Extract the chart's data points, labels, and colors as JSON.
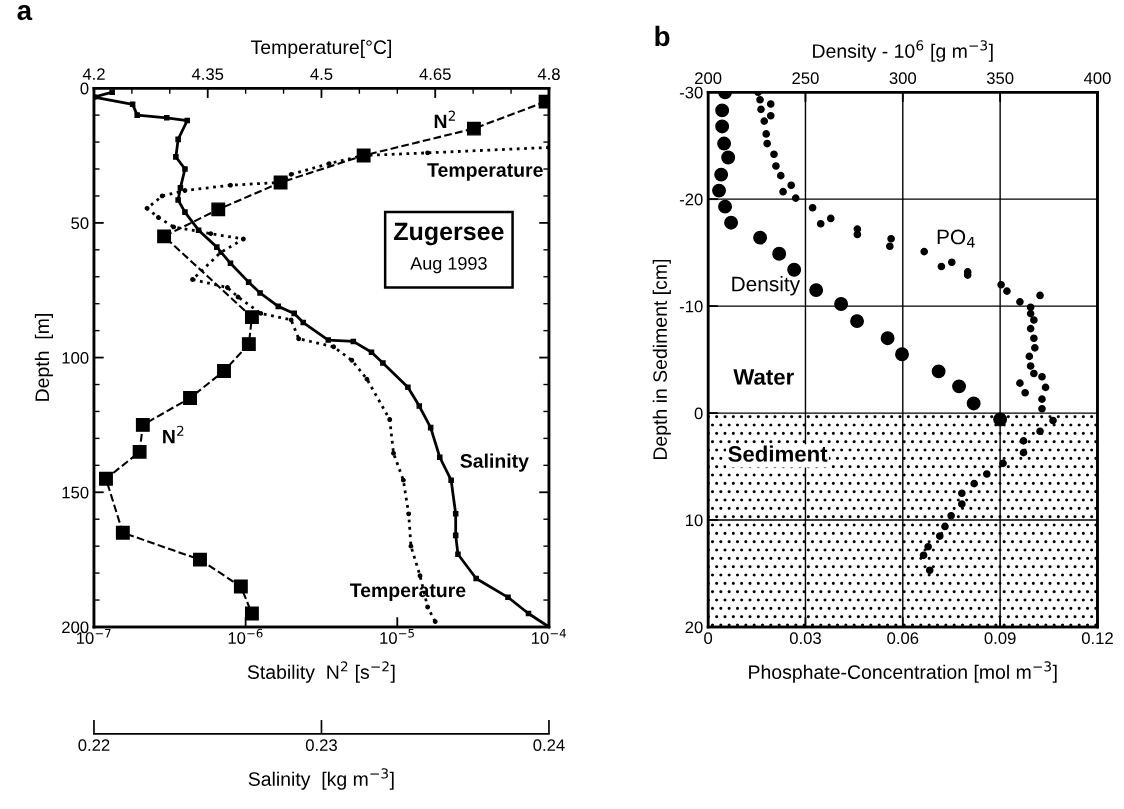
{
  "chart_data": [
    {
      "type": "line",
      "title": "a",
      "xlabel": "Stability  N$^{2}$ [s$^{−2}$]",
      "ylabel": "Depth  [m]",
      "x2label": "Temperature[°C]",
      "log": "x",
      "xlim": [
        1e-07,
        0.0001
      ],
      "xticks": [
        {
          "value": 1e-07,
          "label": "10$^{−7}$"
        },
        {
          "value": 1e-06,
          "label": "10$^{−6}$"
        },
        {
          "value": 1e-05,
          "label": "10$^{−5}$"
        },
        {
          "value": 0.0001,
          "label": "10$^{−4}$"
        }
      ],
      "x2lim": [
        4.2,
        4.8
      ],
      "x2ticks": [
        4.2,
        {
          "value": 4.25,
          "label": null
        },
        {
          "value": 4.3,
          "label": null
        },
        4.35,
        {
          "value": 4.4,
          "label": null
        },
        {
          "value": 4.45,
          "label": null
        },
        4.5,
        {
          "value": 4.55,
          "label": null
        },
        {
          "value": 4.6,
          "label": null
        },
        4.65,
        {
          "value": 4.7,
          "label": null
        },
        {
          "value": 4.75,
          "label": null
        },
        4.8
      ],
      "ylim": [
        200,
        0
      ],
      "yticks": [
        0,
        {
          "value": 10,
          "label": null
        },
        {
          "value": 20,
          "label": null
        },
        {
          "value": 30,
          "label": null
        },
        {
          "value": 40,
          "label": null
        },
        50,
        {
          "value": 60,
          "label": null
        },
        {
          "value": 70,
          "label": null
        },
        {
          "value": 80,
          "label": null
        },
        {
          "value": 90,
          "label": null
        },
        100,
        {
          "value": 110,
          "label": null
        },
        {
          "value": 120,
          "label": null
        },
        {
          "value": 130,
          "label": null
        },
        {
          "value": 140,
          "label": null
        },
        150,
        {
          "value": 160,
          "label": null
        },
        {
          "value": 170,
          "label": null
        },
        {
          "value": 180,
          "label": null
        },
        {
          "value": 190,
          "label": null
        },
        200
      ],
      "series": [
        {
          "color": "#000000",
          "marker": "square",
          "line_style": "dashed",
          "x": [
            9.5e-05,
            3.2e-05,
            6e-06,
            1.7e-06,
            6.6e-07,
            2.9e-07,
            1.1e-06,
            1.05e-06,
            7.2e-07,
            4.3e-07,
            2.1e-07,
            2e-07,
            1.2e-07,
            1.55e-07,
            5e-07,
            9.3e-07,
            1.1e-06
          ],
          "values": [
            5,
            15,
            25,
            35,
            45,
            55,
            85,
            95,
            105,
            115,
            125,
            135,
            145,
            165,
            175,
            185,
            195
          ]
        },
        {
          "color": "#000000",
          "axis": "x2",
          "marker": "circle",
          "line_style": "dotted",
          "x": [
            4.8,
            4.64,
            4.555,
            4.51,
            4.46,
            4.446,
            4.38,
            4.32,
            4.29,
            4.27,
            4.285,
            4.305,
            4.354,
            4.397,
            4.367,
            4.33,
            4.376,
            4.39,
            4.42,
            4.46,
            4.47,
            4.516,
            4.54,
            4.56,
            4.59,
            4.595,
            4.608,
            4.615,
            4.618,
            4.63,
            4.64,
            4.65
          ],
          "values": [
            22,
            24,
            25,
            28,
            32,
            35,
            36,
            38,
            40,
            44.6,
            48,
            51.5,
            54,
            56,
            61,
            71,
            74,
            77.5,
            83.6,
            86,
            93,
            96,
            101,
            108,
            123,
            135.5,
            145.5,
            158,
            170,
            181,
            192.6,
            198
          ]
        }
      ],
      "annotations": [
        "Zugersee",
        "Aug 1993",
        "N$^{2}$",
        "Temperature",
        "N$^{2}$",
        "Temperature"
      ]
    },
    {
      "type": "line",
      "xlabel": "Salinity  [kg m$^{−3}$]",
      "xlim": [
        0.22,
        0.24
      ],
      "xticks": [
        0.22,
        0.23,
        0.24
      ],
      "ylim": [
        200,
        0
      ],
      "tick_labels": "x",
      "series": [
        {
          "color": "#000000",
          "marker": "square",
          "line_style": "solid",
          "x": [
            0.2208,
            0.22,
            0.2217,
            0.2219,
            0.2232,
            0.2241,
            0.2237,
            0.2236,
            0.224,
            0.2238,
            0.2237,
            0.224,
            0.2246,
            0.2254,
            0.226,
            0.2268,
            0.2273,
            0.2281,
            0.2288,
            0.2292,
            0.2303,
            0.2314,
            0.2322,
            0.2327,
            0.2338,
            0.2343,
            0.2348,
            0.2352,
            0.2357,
            0.2359,
            0.2359,
            0.236,
            0.2368,
            0.2382,
            0.2391,
            0.24
          ],
          "values": [
            1.5,
            3.3,
            6,
            10,
            11,
            12,
            19,
            25.5,
            30,
            37,
            41.5,
            46,
            52.7,
            59,
            65,
            72,
            76,
            81,
            83.6,
            87,
            93.5,
            94,
            98,
            102,
            111,
            118,
            126,
            137,
            145.5,
            158,
            166,
            173,
            182,
            189,
            195,
            200
          ]
        }
      ],
      "annotations": [
        "Salinity"
      ]
    },
    {
      "type": "scatter",
      "title": "b",
      "xlabel": "Phosphate-Concentration [mol m$^{−3}$]",
      "ylabel": "Depth in Sediment [cm]",
      "x2label": "Density - 10$^{6}$ [g m$^{−3}$]",
      "xlim": [
        0,
        0.12
      ],
      "xticks": [
        0,
        0.03,
        0.06,
        0.09,
        0.12
      ],
      "x2lim": [
        200,
        400
      ],
      "x2ticks": [
        200,
        250,
        300,
        350,
        400
      ],
      "ylim": [
        20,
        -30
      ],
      "yticks": [
        -30,
        -20,
        -10,
        0,
        10,
        20
      ],
      "grid": true,
      "bands": [
        {
          "axis": "y",
          "from": 0,
          "to": 20,
          "label": "Sediment",
          "color": "#000000"
        }
      ],
      "series": [
        {
          "color": "#000000",
          "axis": "x2",
          "marker": "circle",
          "x": [
            208.7,
            207.2,
            207.2,
            208.2,
            210.3,
            206.7,
            205.6,
            208.7,
            211.8,
            226.7,
            236.5,
            244.2,
            255.5,
            268.3,
            276.5,
            292.2,
            299.6,
            318.4,
            328.9,
            336.4,
            350
          ],
          "values": [
            -30,
            -28.3,
            -26.8,
            -25.2,
            -23.9,
            -22.3,
            -20.8,
            -19.3,
            -17.8,
            -16.4,
            -14.9,
            -13.4,
            -11.5,
            -10.2,
            -8.6,
            -7.0,
            -5.5,
            -3.9,
            -2.5,
            -0.9,
            0.6
          ]
        },
        {
          "color": "#000000",
          "marker": "circle",
          "x": [
            0.0154,
            0.016,
            0.0193,
            0.0163,
            0.0193,
            0.0173,
            0.0179,
            0.0182,
            0.0203,
            0.0209,
            0.0224,
            0.0256,
            0.0231,
            0.027,
            0.0322,
            0.0378,
            0.0347,
            0.046,
            0.046,
            0.0564,
            0.056,
            0.0666,
            0.0751,
            0.0719,
            0.08,
            0.08,
            0.0903,
            0.0921,
            0.1023,
            0.0961,
            0.0994,
            0.0994,
            0.1004,
            0.0994,
            0.1004,
            0.1007,
            0.099,
            0.0994,
            0.1004,
            0.1029,
            0.0961,
            0.104,
            0.0977,
            0.1029,
            0.1029,
            0.1063,
            0.1023,
            0.0972,
            0.0972,
            0.0909,
            0.0859,
            0.082,
            0.0782,
            0.0782,
            0.0749,
            0.073,
            0.0714,
            0.0678,
            0.0664,
            0.0683
          ],
          "values": [
            -30,
            -29.3,
            -28.9,
            -28.4,
            -27.8,
            -27.3,
            -26.1,
            -25.2,
            -24.2,
            -23.1,
            -22.2,
            -21.3,
            -20.7,
            -20.1,
            -19.2,
            -18.2,
            -17.7,
            -17.2,
            -16.7,
            -16.3,
            -15.6,
            -15.1,
            -14.1,
            -13.7,
            -13.2,
            -12.9,
            -12.0,
            -11.4,
            -11.0,
            -10.4,
            -9.9,
            -9.3,
            -8.7,
            -7.9,
            -7.0,
            -6.1,
            -5.3,
            -4.4,
            -3.7,
            -3.4,
            -2.8,
            -2.4,
            -1.9,
            -1.3,
            -0.4,
            0.7,
            1.7,
            2.6,
            3.7,
            4.7,
            5.7,
            6.6,
            7.5,
            8.5,
            9.6,
            10.6,
            11.5,
            12.5,
            13.3,
            14.7
          ]
        }
      ],
      "annotations": [
        "Density",
        "PO$_{4}$",
        "Water"
      ]
    }
  ]
}
